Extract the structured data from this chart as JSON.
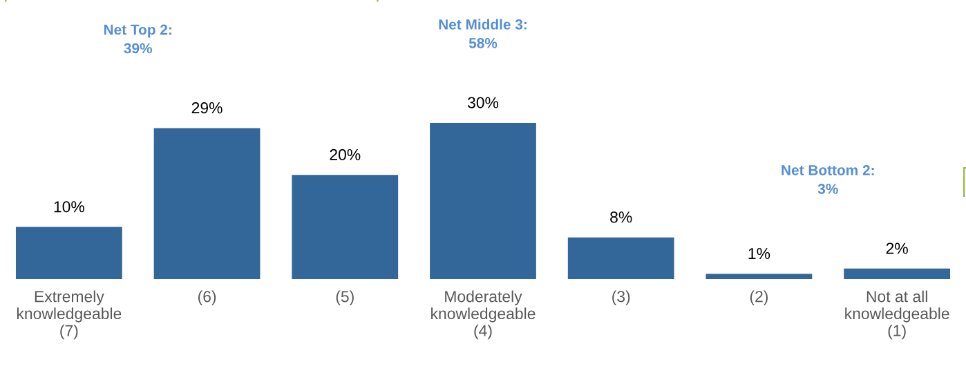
{
  "chart_data": {
    "type": "bar",
    "categories": [
      "Extremely\nknowledgeable\n(7)",
      "(6)",
      "(5)",
      "Moderately\nknowledgeable\n(4)",
      "(3)",
      "(2)",
      "Not at all\nknowledgeable\n(1)"
    ],
    "values": [
      10,
      29,
      20,
      30,
      8,
      1,
      2
    ],
    "color": "#336699",
    "value_labels": [
      "10%",
      "29%",
      "20%",
      "30%",
      "8%",
      "1%",
      "2%"
    ],
    "annotations": [
      "Net Top 2:\n39%",
      "Net Middle 3:\n58%",
      "Net Bottom 2:\n3%"
    ],
    "grid": false,
    "legend": false
  }
}
